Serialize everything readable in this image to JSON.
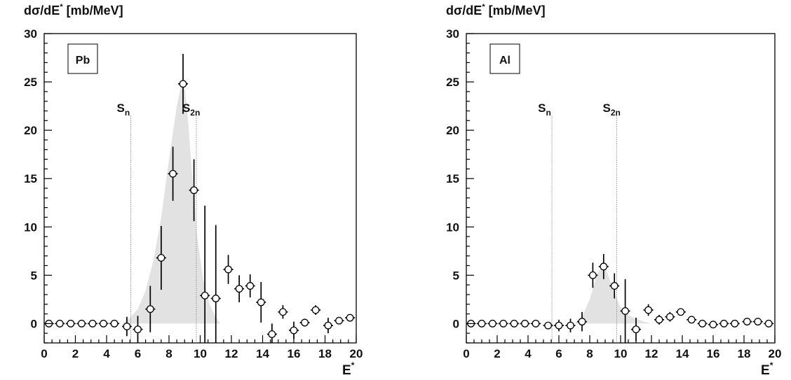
{
  "chart_data": [
    {
      "type": "scatter",
      "ylabel": "dσ/dE",
      "ylabel_sup": "*",
      "ylabel_unit": "[mb/MeV]",
      "xlabel": "E",
      "xlabel_sup": "*",
      "xlim": [
        0,
        20
      ],
      "ylim": [
        -2,
        30
      ],
      "x_ticks": [
        0,
        2,
        4,
        6,
        8,
        10,
        12,
        14,
        16,
        18,
        20
      ],
      "y_ticks": [
        0,
        5,
        10,
        15,
        20,
        25,
        30
      ],
      "legend_label": "Pb",
      "thresholds": [
        {
          "label": "S",
          "sub": "n",
          "x": 5.55
        },
        {
          "label": "S",
          "sub": "2n",
          "x": 9.75
        }
      ],
      "points": [
        {
          "x": 0.3,
          "y": 0.0,
          "err": 0.0
        },
        {
          "x": 1.0,
          "y": 0.0,
          "err": 0.0
        },
        {
          "x": 1.7,
          "y": 0.0,
          "err": 0.0
        },
        {
          "x": 2.4,
          "y": 0.0,
          "err": 0.0
        },
        {
          "x": 3.1,
          "y": 0.0,
          "err": 0.0
        },
        {
          "x": 3.8,
          "y": 0.0,
          "err": 0.0
        },
        {
          "x": 4.5,
          "y": 0.0,
          "err": 0.0
        },
        {
          "x": 5.3,
          "y": -0.3,
          "err": 1.0
        },
        {
          "x": 6.0,
          "y": -0.6,
          "err": 1.4
        },
        {
          "x": 6.8,
          "y": 1.5,
          "err": 2.4
        },
        {
          "x": 7.5,
          "y": 6.8,
          "err": 3.3
        },
        {
          "x": 8.25,
          "y": 15.5,
          "err": 2.8
        },
        {
          "x": 8.9,
          "y": 24.8,
          "err": 3.1
        },
        {
          "x": 9.6,
          "y": 13.8,
          "err": 3.2
        },
        {
          "x": 10.3,
          "y": 2.9,
          "err": 9.3
        },
        {
          "x": 11.0,
          "y": 2.6,
          "err": 7.6
        },
        {
          "x": 11.8,
          "y": 5.6,
          "err": 1.5
        },
        {
          "x": 12.5,
          "y": 3.6,
          "err": 1.4
        },
        {
          "x": 13.2,
          "y": 3.9,
          "err": 1.2
        },
        {
          "x": 13.9,
          "y": 2.2,
          "err": 2.1
        },
        {
          "x": 14.6,
          "y": -1.1,
          "err": 1.1
        },
        {
          "x": 15.3,
          "y": 1.2,
          "err": 0.7
        },
        {
          "x": 16.0,
          "y": -0.7,
          "err": 0.9
        },
        {
          "x": 16.7,
          "y": 0.1,
          "err": 0.4
        },
        {
          "x": 17.4,
          "y": 1.4,
          "err": 0.5
        },
        {
          "x": 18.2,
          "y": -0.2,
          "err": 0.8
        },
        {
          "x": 18.9,
          "y": 0.3,
          "err": 0.3
        },
        {
          "x": 19.6,
          "y": 0.6,
          "err": 0.3
        }
      ],
      "fill_curve": {
        "color": "#e2e2e2",
        "x": [
          5.0,
          5.5,
          6.0,
          6.5,
          7.0,
          7.5,
          8.0,
          8.5,
          8.8,
          9.0,
          9.2,
          9.5,
          9.8,
          10.2,
          10.6,
          11.0,
          11.3
        ],
        "y": [
          0.0,
          0.6,
          1.5,
          3.4,
          6.5,
          11.0,
          17.0,
          22.5,
          24.8,
          24.5,
          21.5,
          15.0,
          9.0,
          4.5,
          2.0,
          0.6,
          0.0
        ]
      }
    },
    {
      "type": "scatter",
      "ylabel": "dσ/dE",
      "ylabel_sup": "*",
      "ylabel_unit": "[mb/MeV]",
      "xlabel": "E",
      "xlabel_sup": "*",
      "xlim": [
        0,
        20
      ],
      "ylim": [
        -2,
        30
      ],
      "x_ticks": [
        0,
        2,
        4,
        6,
        8,
        10,
        12,
        14,
        16,
        18,
        20
      ],
      "y_ticks": [
        0,
        5,
        10,
        15,
        20,
        25,
        30
      ],
      "legend_label": "Al",
      "thresholds": [
        {
          "label": "S",
          "sub": "n",
          "x": 5.55
        },
        {
          "label": "S",
          "sub": "2n",
          "x": 9.75
        }
      ],
      "points": [
        {
          "x": 0.3,
          "y": 0.0,
          "err": 0.0
        },
        {
          "x": 1.0,
          "y": 0.0,
          "err": 0.0
        },
        {
          "x": 1.7,
          "y": 0.0,
          "err": 0.0
        },
        {
          "x": 2.4,
          "y": 0.0,
          "err": 0.0
        },
        {
          "x": 3.1,
          "y": 0.0,
          "err": 0.0
        },
        {
          "x": 3.8,
          "y": 0.0,
          "err": 0.0
        },
        {
          "x": 4.5,
          "y": 0.0,
          "err": 0.0
        },
        {
          "x": 5.3,
          "y": -0.2,
          "err": 0.3
        },
        {
          "x": 6.0,
          "y": -0.2,
          "err": 0.6
        },
        {
          "x": 6.75,
          "y": -0.2,
          "err": 0.7
        },
        {
          "x": 7.5,
          "y": 0.2,
          "err": 1.0
        },
        {
          "x": 8.2,
          "y": 5.0,
          "err": 1.3
        },
        {
          "x": 8.9,
          "y": 5.9,
          "err": 1.3
        },
        {
          "x": 9.6,
          "y": 3.9,
          "err": 1.3
        },
        {
          "x": 10.3,
          "y": 1.3,
          "err": 3.3
        },
        {
          "x": 11.0,
          "y": -0.6,
          "err": 1.2
        },
        {
          "x": 11.8,
          "y": 1.4,
          "err": 0.6
        },
        {
          "x": 12.5,
          "y": 0.4,
          "err": 0.5
        },
        {
          "x": 13.2,
          "y": 0.7,
          "err": 0.5
        },
        {
          "x": 13.9,
          "y": 1.2,
          "err": 0.3
        },
        {
          "x": 14.6,
          "y": 0.4,
          "err": 0.2
        },
        {
          "x": 15.3,
          "y": 0.0,
          "err": 0.2
        },
        {
          "x": 16.0,
          "y": -0.1,
          "err": 0.2
        },
        {
          "x": 16.7,
          "y": 0.0,
          "err": 0.2
        },
        {
          "x": 17.4,
          "y": 0.0,
          "err": 0.2
        },
        {
          "x": 18.2,
          "y": 0.2,
          "err": 0.2
        },
        {
          "x": 18.9,
          "y": 0.2,
          "err": 0.2
        },
        {
          "x": 19.6,
          "y": 0.0,
          "err": 0.2
        }
      ],
      "fill_curve": {
        "color": "#e2e2e2",
        "x": [
          7.0,
          7.5,
          8.0,
          8.5,
          8.8,
          9.0,
          9.3,
          9.6,
          10.0,
          10.5,
          11.0,
          11.5,
          12.0
        ],
        "y": [
          0.0,
          0.7,
          2.5,
          5.2,
          6.0,
          5.8,
          4.6,
          3.1,
          1.7,
          0.9,
          0.5,
          0.2,
          0.0
        ]
      }
    }
  ]
}
